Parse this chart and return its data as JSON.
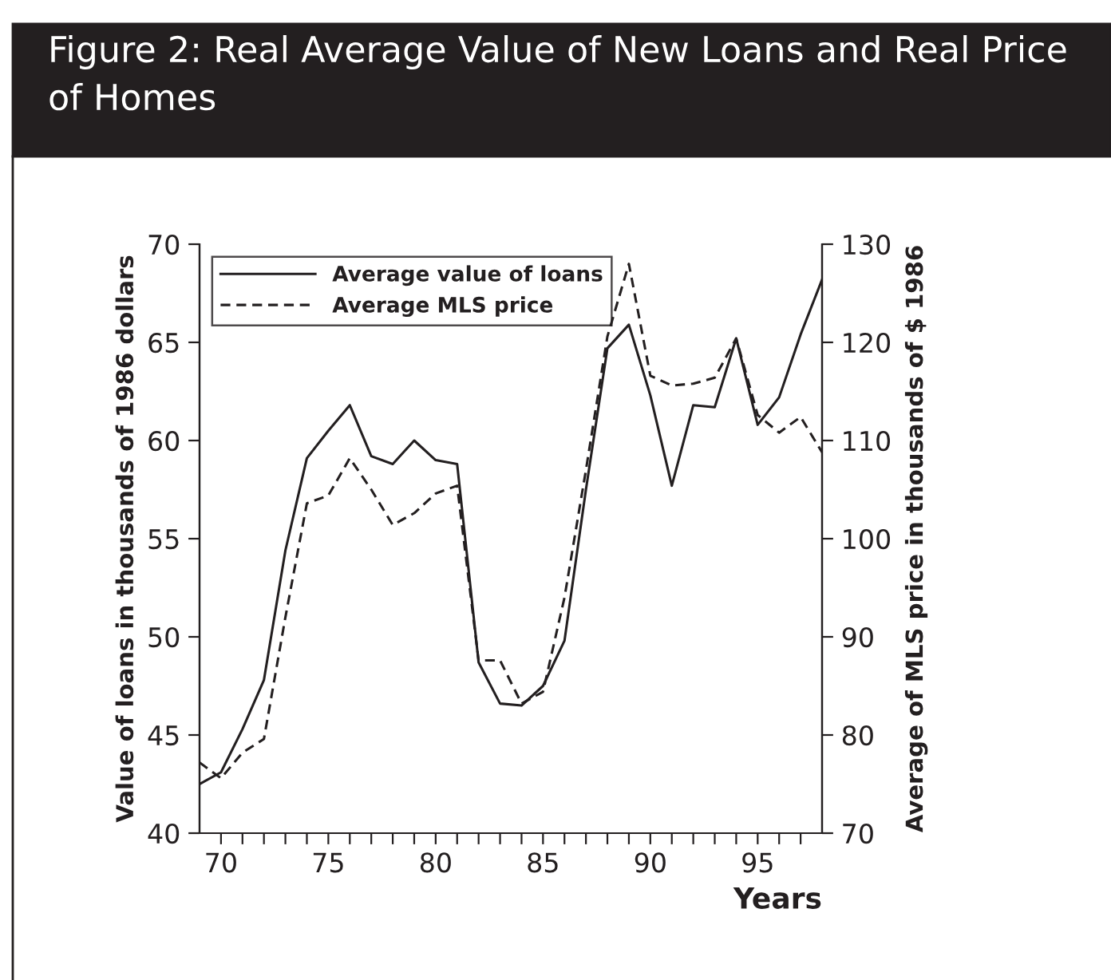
{
  "chart_data": {
    "type": "line",
    "title": "Figure 2: Real Average Value of New Loans and Real Price of Homes",
    "xlabel": "Years",
    "ylabel": "Value of loans in thousands of 1986 dollars",
    "y2label": "Average of MLS price in thousands of $ 1986",
    "x": [
      69,
      70,
      71,
      72,
      73,
      74,
      75,
      76,
      77,
      78,
      79,
      80,
      81,
      82,
      83,
      84,
      85,
      86,
      87,
      88,
      89,
      90,
      91,
      92,
      93,
      94,
      95,
      96,
      97,
      98
    ],
    "series": [
      {
        "name": "Average value of loans",
        "color": "#231f20",
        "line_style": "solid",
        "values": [
          42.5,
          43.1,
          45.3,
          47.8,
          54.4,
          59.1,
          60.5,
          61.8,
          59.2,
          58.8,
          60.0,
          59.0,
          58.8,
          48.7,
          46.6,
          46.5,
          47.5,
          49.8,
          57.5,
          64.7,
          65.9,
          62.3,
          57.7,
          61.8,
          61.7,
          65.2,
          60.8,
          62.2,
          65.4,
          68.2
        ]
      },
      {
        "name": "Average MLS price",
        "color": "#231f20",
        "line_style": "dashed",
        "axis": "y2",
        "values": [
          77.2,
          75.6,
          78.2,
          79.6,
          92,
          103.6,
          104.4,
          108.2,
          105,
          101.4,
          102.6,
          104.6,
          105.4,
          87.6,
          87.6,
          83.2,
          84.4,
          94,
          107,
          120.6,
          128,
          116.6,
          115.6,
          115.8,
          116.4,
          120.4,
          112.6,
          110.8,
          112.4,
          108.8
        ]
      }
    ],
    "xlim": [
      69,
      98
    ],
    "xticks": [
      70,
      {
        "value": 71,
        "label": null
      },
      {
        "value": 72,
        "label": null
      },
      {
        "value": 73,
        "label": null
      },
      {
        "value": 74,
        "label": null
      },
      75,
      {
        "value": 76,
        "label": null
      },
      {
        "value": 77,
        "label": null
      },
      {
        "value": 78,
        "label": null
      },
      {
        "value": 79,
        "label": null
      },
      80,
      {
        "value": 81,
        "label": null
      },
      {
        "value": 82,
        "label": null
      },
      {
        "value": 83,
        "label": null
      },
      {
        "value": 84,
        "label": null
      },
      85,
      {
        "value": 86,
        "label": null
      },
      {
        "value": 87,
        "label": null
      },
      {
        "value": 88,
        "label": null
      },
      {
        "value": 89,
        "label": null
      },
      90,
      {
        "value": 91,
        "label": null
      },
      {
        "value": 92,
        "label": null
      },
      {
        "value": 93,
        "label": null
      },
      {
        "value": 94,
        "label": null
      },
      95,
      {
        "value": 96,
        "label": null
      },
      {
        "value": 97,
        "label": null
      }
    ],
    "ylim": [
      40,
      70
    ],
    "yticks": [
      40,
      45,
      50,
      55,
      60,
      65,
      70
    ],
    "y2lim": [
      70,
      130
    ],
    "y2ticks": [
      70,
      80,
      90,
      100,
      110,
      120,
      130
    ],
    "grid": false,
    "legend": "top left",
    "marker": "none"
  }
}
